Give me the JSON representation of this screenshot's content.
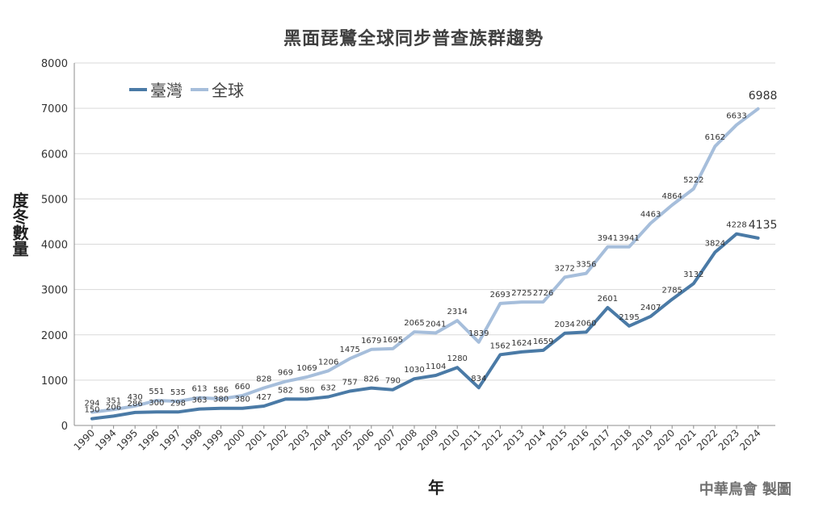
{
  "chart_data": {
    "type": "line",
    "title": "黑面琵鷺全球同步普查族群趨勢",
    "xlabel": "年",
    "ylabel": "度冬數量",
    "credit": "中華鳥會 製圖",
    "ylim": [
      0,
      8000
    ],
    "yticks": [
      0,
      1000,
      2000,
      3000,
      4000,
      5000,
      6000,
      7000,
      8000
    ],
    "grid": true,
    "legend_position": "top-left",
    "categories": [
      "1990",
      "1994",
      "1995",
      "1996",
      "1997",
      "1998",
      "1999",
      "2000",
      "2001",
      "2002",
      "2003",
      "2004",
      "2005",
      "2006",
      "2007",
      "2008",
      "2009",
      "2010",
      "2011",
      "2012",
      "2013",
      "2014",
      "2015",
      "2016",
      "2017",
      "2018",
      "2019",
      "2020",
      "2021",
      "2022",
      "2023",
      "2024"
    ],
    "series": [
      {
        "name": "臺灣",
        "color": "#4a7aa6",
        "values": [
          150,
          206,
          286,
          300,
          298,
          363,
          380,
          380,
          427,
          582,
          580,
          632,
          757,
          826,
          790,
          1030,
          1104,
          1280,
          834,
          1562,
          1624,
          1659,
          2034,
          2060,
          2601,
          2195,
          2407,
          2785,
          3132,
          3824,
          4228,
          4135
        ]
      },
      {
        "name": "全球",
        "color": "#a6bedb",
        "values": [
          294,
          351,
          430,
          551,
          535,
          613,
          586,
          660,
          828,
          969,
          1069,
          1206,
          1475,
          1679,
          1695,
          2065,
          2041,
          2314,
          1839,
          2693,
          2725,
          2726,
          3272,
          3356,
          3941,
          3941,
          4463,
          4864,
          5222,
          6162,
          6633,
          6988
        ]
      }
    ]
  }
}
